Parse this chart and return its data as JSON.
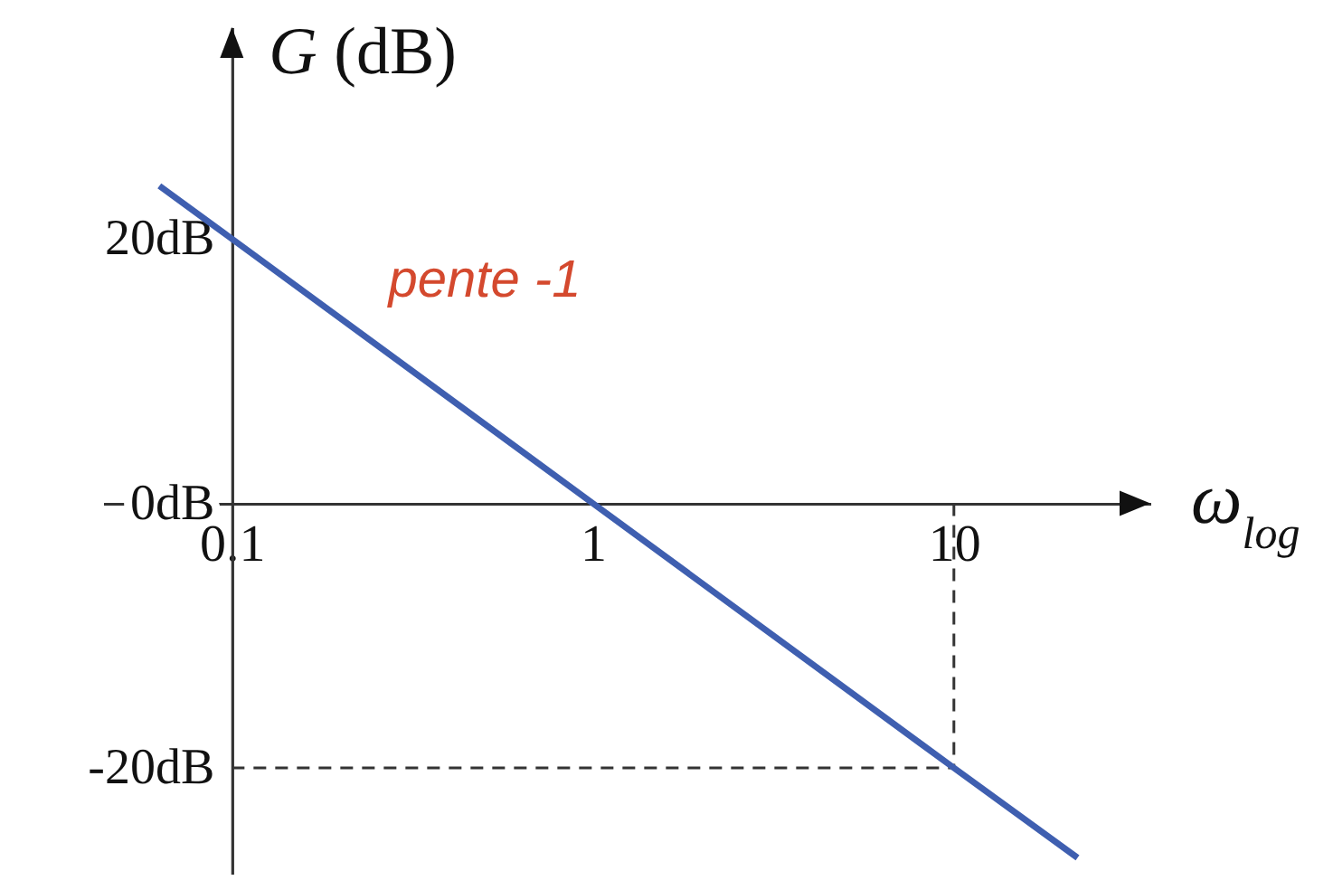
{
  "chart_data": {
    "type": "line",
    "xlabel": "ω$_{log}$",
    "ylabel": "G (dB)",
    "x": [
      0.063,
      0.1,
      1,
      10,
      22
    ],
    "series": [
      {
        "color": "#3f5fb0",
        "values": [
          24,
          20,
          0,
          -20,
          -26.8
        ]
      }
    ],
    "log": "x",
    "xlim": [
      0.044,
      35
    ],
    "ylim": [
      -28,
      36
    ],
    "xticks": [
      0.1,
      1,
      10
    ],
    "yticks": [
      {
        "value": 20,
        "label": "20dB"
      },
      {
        "value": 0,
        "label": "0dB"
      },
      {
        "value": -20,
        "label": "-20dB"
      }
    ],
    "ref_lines": [
      {
        "axis": "y",
        "value": -20,
        "line_style": "dashed",
        "color": "#333333"
      },
      {
        "axis": "x",
        "value": 10,
        "line_style": "dashed",
        "color": "#333333"
      }
    ],
    "annotations": [
      "pente -1"
    ]
  }
}
